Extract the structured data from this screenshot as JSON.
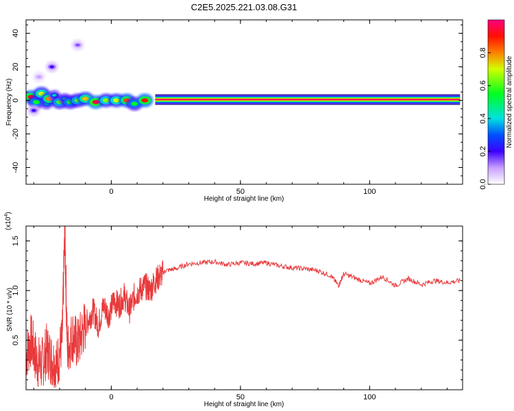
{
  "title": "C2E5.2025.221.03.08.G31",
  "chart_data": [
    {
      "type": "heatmap",
      "xlabel": "Height of straight line (km)",
      "ylabel": "Frequency (Hz)",
      "xlim": [
        -33,
        136
      ],
      "ylim": [
        -50,
        48
      ],
      "xticks": [
        0,
        50,
        100
      ],
      "yticks": [
        -40,
        -20,
        0,
        20,
        40
      ],
      "colorbar": {
        "label": "Normalized spectral amplitude",
        "ticks": [
          0.0,
          0.2,
          0.4,
          0.6,
          0.8
        ],
        "range": [
          0,
          1
        ]
      },
      "ridge": {
        "x_start": 17,
        "x_end": 135,
        "frequency": 0.5,
        "amplitude": 1.0
      },
      "blobs": [
        {
          "x": -31,
          "y": 2,
          "v": 0.9
        },
        {
          "x": -29,
          "y": -1,
          "v": 0.55
        },
        {
          "x": -27,
          "y": 4,
          "v": 0.7
        },
        {
          "x": -25,
          "y": -2,
          "v": 0.5
        },
        {
          "x": -24,
          "y": 1,
          "v": 0.8
        },
        {
          "x": -22,
          "y": 3,
          "v": 0.45
        },
        {
          "x": -20,
          "y": -1,
          "v": 0.6
        },
        {
          "x": -18,
          "y": 1,
          "v": 0.5
        },
        {
          "x": -16,
          "y": -1,
          "v": 0.55
        },
        {
          "x": -13,
          "y": 0,
          "v": 0.6
        },
        {
          "x": -10,
          "y": 1,
          "v": 0.75
        },
        {
          "x": -6,
          "y": -1,
          "v": 0.95
        },
        {
          "x": -2,
          "y": 0,
          "v": 0.65
        },
        {
          "x": 2,
          "y": 0,
          "v": 0.7
        },
        {
          "x": 6,
          "y": 0,
          "v": 0.85
        },
        {
          "x": 9,
          "y": -2,
          "v": 0.55
        },
        {
          "x": 13,
          "y": 0,
          "v": 0.9
        },
        {
          "x": -23,
          "y": 20,
          "v": 0.2
        },
        {
          "x": -13,
          "y": 33,
          "v": 0.15
        },
        {
          "x": -28,
          "y": 14,
          "v": 0.1
        },
        {
          "x": -30,
          "y": -6,
          "v": 0.2
        }
      ]
    },
    {
      "type": "line",
      "xlabel": "Height of straight line (km)",
      "ylabel": "SNR (10 * v/v)",
      "scale_note": "(x10^4)",
      "xlim": [
        -33,
        136
      ],
      "ylim": [
        0,
        1.65
      ],
      "xticks": [
        0,
        50,
        100
      ],
      "yticks": [
        0.5,
        1.0,
        1.5
      ],
      "series": [
        {
          "color": "#e8393b",
          "x": [
            -33,
            -31,
            -29,
            -27,
            -25,
            -23,
            -21,
            -19,
            -18,
            -17,
            -15,
            -13,
            -11,
            -9,
            -7,
            -5,
            -3,
            -1,
            1,
            3,
            5,
            7,
            9,
            11,
            13,
            15,
            17,
            19,
            21,
            25,
            30,
            35,
            40,
            45,
            50,
            55,
            60,
            65,
            70,
            75,
            80,
            85,
            88,
            90,
            95,
            100,
            105,
            110,
            115,
            120,
            125,
            130,
            135
          ],
          "y": [
            0.35,
            0.5,
            0.3,
            0.25,
            0.4,
            0.3,
            0.25,
            0.5,
            1.6,
            0.4,
            0.55,
            0.45,
            0.6,
            0.7,
            0.8,
            0.65,
            0.85,
            0.75,
            0.9,
            0.85,
            0.95,
            0.8,
            0.95,
            1.0,
            1.05,
            1.0,
            1.1,
            1.15,
            1.2,
            1.22,
            1.27,
            1.28,
            1.29,
            1.26,
            1.28,
            1.27,
            1.28,
            1.25,
            1.23,
            1.22,
            1.2,
            1.15,
            1.05,
            1.17,
            1.12,
            1.07,
            1.14,
            1.05,
            1.12,
            1.06,
            1.1,
            1.08,
            1.1
          ]
        }
      ]
    }
  ]
}
